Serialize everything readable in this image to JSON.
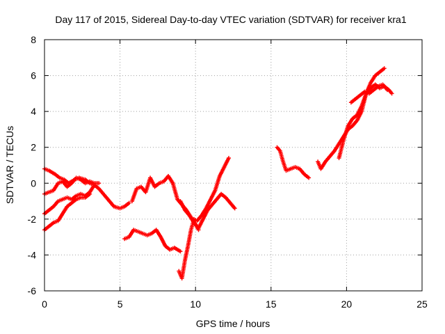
{
  "chart_data": {
    "type": "scatter",
    "title": "Day 117 of 2015, Sidereal Day-to-day VTEC variation (SDTVAR) for receiver kra1",
    "xlabel": "GPS time / hours",
    "ylabel": "SDTVAR / TECUs",
    "xlim": [
      0,
      25
    ],
    "ylim": [
      -6,
      8
    ],
    "xticks": [
      0,
      5,
      10,
      15,
      20,
      25
    ],
    "yticks": [
      -6,
      -4,
      -2,
      0,
      2,
      4,
      6,
      8
    ],
    "grid": true,
    "legend": "none",
    "marker": "plus",
    "series_color": "#ff0000",
    "series": [
      {
        "x": [
          0.0,
          0.3,
          0.7,
          1.0,
          1.3,
          1.6,
          2.0,
          2.3,
          2.7,
          3.0,
          3.3,
          3.6,
          4.0,
          4.3,
          4.6,
          5.0,
          5.3,
          5.6
        ],
        "y": [
          0.8,
          0.7,
          0.5,
          0.3,
          0.2,
          0.0,
          0.2,
          0.3,
          0.2,
          0.0,
          -0.1,
          -0.3,
          -0.7,
          -1.0,
          -1.3,
          -1.4,
          -1.3,
          -1.1
        ]
      },
      {
        "x": [
          0.0,
          0.3,
          0.6,
          0.9,
          1.2,
          1.5,
          1.8,
          2.1,
          2.4,
          2.7,
          3.0,
          3.3,
          3.6
        ],
        "y": [
          -0.6,
          -0.5,
          -0.4,
          0.0,
          0.1,
          -0.2,
          0.0,
          0.3,
          0.2,
          0.0,
          0.1,
          0.0,
          0.0
        ]
      },
      {
        "x": [
          0.0,
          0.3,
          0.6,
          0.9,
          1.2,
          1.5,
          1.8,
          2.1,
          2.4,
          2.7,
          3.0,
          3.3
        ],
        "y": [
          -1.7,
          -1.5,
          -1.3,
          -1.0,
          -0.9,
          -0.8,
          -0.9,
          -0.7,
          -0.6,
          -0.7,
          -0.5,
          -0.1
        ]
      },
      {
        "x": [
          0.0,
          0.3,
          0.6,
          0.9,
          1.2,
          1.5,
          1.8,
          2.1,
          2.4,
          2.7,
          3.0
        ],
        "y": [
          -2.6,
          -2.4,
          -2.2,
          -2.1,
          -1.7,
          -1.3,
          -1.1,
          -0.9,
          -0.8,
          -0.8,
          -0.6
        ]
      },
      {
        "x": [
          5.3,
          5.6,
          5.9,
          6.2,
          6.5,
          6.8,
          7.1,
          7.4,
          7.7,
          8.0,
          8.3,
          8.6,
          9.0
        ],
        "y": [
          -3.1,
          -3.0,
          -2.6,
          -2.7,
          -2.8,
          -2.9,
          -2.8,
          -2.6,
          -3.0,
          -3.5,
          -3.7,
          -3.6,
          -3.8
        ]
      },
      {
        "x": [
          5.8,
          6.1,
          6.4,
          6.7,
          7.0,
          7.3,
          7.6,
          7.9,
          8.2,
          8.5,
          8.8,
          9.1,
          9.4,
          9.7,
          10.0,
          10.2
        ],
        "y": [
          -1.0,
          -0.3,
          -0.2,
          -0.5,
          0.3,
          -0.2,
          0.0,
          0.1,
          0.4,
          0.0,
          -0.9,
          -1.2,
          -1.5,
          -1.9,
          -2.3,
          -2.6
        ]
      },
      {
        "x": [
          8.9,
          9.1,
          9.3,
          9.5,
          9.7,
          9.9,
          10.1,
          10.4,
          10.7,
          11.0,
          11.3,
          11.6,
          11.9,
          12.2
        ],
        "y": [
          -4.9,
          -5.3,
          -4.3,
          -3.5,
          -2.6,
          -2.0,
          -2.1,
          -1.8,
          -1.4,
          -0.9,
          -0.4,
          0.4,
          0.9,
          1.4
        ]
      },
      {
        "x": [
          9.0,
          9.3,
          9.6,
          9.9,
          10.2,
          10.5,
          10.8,
          11.1,
          11.4,
          11.7,
          12.0,
          12.3,
          12.6
        ],
        "y": [
          -1.0,
          -1.5,
          -1.8,
          -2.2,
          -2.5,
          -2.0,
          -1.5,
          -1.2,
          -0.9,
          -0.6,
          -0.8,
          -1.1,
          -1.4
        ]
      },
      {
        "x": [
          15.4,
          15.6,
          15.8,
          16.0,
          16.3,
          16.6,
          16.9,
          17.2,
          17.5
        ],
        "y": [
          2.0,
          1.8,
          1.2,
          0.7,
          0.8,
          0.9,
          0.8,
          0.5,
          0.3
        ]
      },
      {
        "x": [
          18.1,
          18.3,
          18.6,
          18.9,
          19.2,
          19.5,
          19.8,
          20.1,
          20.4,
          20.7,
          21.0,
          21.3,
          21.6,
          21.9,
          22.2,
          22.5
        ],
        "y": [
          1.2,
          0.8,
          1.2,
          1.5,
          1.8,
          2.2,
          2.6,
          3.0,
          3.2,
          3.5,
          4.0,
          5.0,
          5.6,
          6.0,
          6.2,
          6.4
        ]
      },
      {
        "x": [
          19.5,
          19.8,
          20.1,
          20.4,
          20.7,
          21.0,
          21.3,
          21.6,
          21.9,
          22.2,
          22.5,
          22.8,
          23.0
        ],
        "y": [
          1.4,
          2.4,
          3.2,
          3.6,
          3.8,
          4.3,
          5.0,
          5.3,
          5.5,
          5.3,
          5.4,
          5.2,
          5.0
        ]
      },
      {
        "x": [
          20.3,
          20.6,
          20.9,
          21.2,
          21.5,
          21.8,
          22.1,
          22.4,
          22.7
        ],
        "y": [
          4.5,
          4.7,
          4.9,
          5.1,
          5.0,
          5.2,
          5.4,
          5.5,
          5.2
        ]
      }
    ]
  }
}
